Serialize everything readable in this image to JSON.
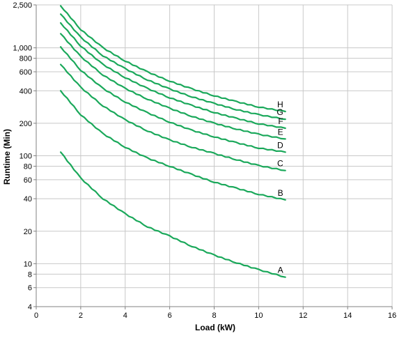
{
  "chart_data": {
    "type": "line",
    "xlabel": "Load (kW)",
    "ylabel": "Runtime (Min)",
    "xlim": [
      0,
      16
    ],
    "ylim": [
      4,
      2500
    ],
    "y_scale": "log",
    "grid": true,
    "legend": "none (labels at line ends)",
    "line_color": "#1aa85a",
    "x_ticks": [
      0,
      2,
      4,
      6,
      8,
      10,
      12,
      14,
      16
    ],
    "x_tick_labels": [
      "0",
      "2",
      "4",
      "6",
      "8",
      "10",
      "12",
      "14",
      "16"
    ],
    "y_ticks": [
      4,
      6,
      8,
      10,
      20,
      40,
      60,
      80,
      100,
      200,
      400,
      600,
      800,
      1000,
      2500
    ],
    "y_tick_labels": [
      "4",
      "6",
      "8",
      "10",
      "20",
      "40",
      "60",
      "80",
      "100",
      "200",
      "400",
      "600",
      "800",
      "1,000",
      "2,500"
    ],
    "series": [
      {
        "name": "A",
        "x": [
          1.1,
          2,
          3,
          4,
          5,
          6,
          7,
          8,
          9,
          10,
          11.2
        ],
        "y": [
          108,
          62,
          40,
          29,
          22,
          18,
          14.5,
          12,
          10.2,
          8.8,
          7.5
        ]
      },
      {
        "name": "B",
        "x": [
          1.1,
          2,
          3,
          4,
          5,
          6,
          7,
          8,
          9,
          10,
          11.2
        ],
        "y": [
          400,
          240,
          160,
          120,
          95,
          80,
          67,
          57,
          50,
          44,
          39
        ]
      },
      {
        "name": "C",
        "x": [
          1.1,
          2,
          3,
          4,
          5,
          6,
          7,
          8,
          9,
          10,
          11.2
        ],
        "y": [
          700,
          430,
          290,
          215,
          170,
          140,
          120,
          105,
          92,
          81,
          73
        ]
      },
      {
        "name": "D",
        "x": [
          1.1,
          2,
          3,
          4,
          5,
          6,
          7,
          8,
          9,
          10,
          11.2
        ],
        "y": [
          1020,
          620,
          420,
          315,
          250,
          205,
          172,
          150,
          132,
          118,
          108
        ]
      },
      {
        "name": "E",
        "x": [
          1.1,
          2,
          3,
          4,
          5,
          6,
          7,
          8,
          9,
          10,
          11.2
        ],
        "y": [
          1350,
          830,
          560,
          420,
          335,
          275,
          232,
          200,
          177,
          158,
          143
        ]
      },
      {
        "name": "F",
        "x": [
          1.1,
          2,
          3,
          4,
          5,
          6,
          7,
          8,
          9,
          10,
          11.2
        ],
        "y": [
          1700,
          1040,
          700,
          530,
          420,
          345,
          292,
          252,
          222,
          198,
          180
        ]
      },
      {
        "name": "G",
        "x": [
          1.1,
          2,
          3,
          4,
          5,
          6,
          7,
          8,
          9,
          10,
          11.2
        ],
        "y": [
          2050,
          1250,
          845,
          640,
          505,
          415,
          352,
          305,
          268,
          240,
          218
        ]
      },
      {
        "name": "H",
        "x": [
          1.1,
          2,
          3,
          4,
          5,
          6,
          7,
          8,
          9,
          10,
          11.2
        ],
        "y": [
          2450,
          1480,
          1000,
          755,
          598,
          492,
          416,
          360,
          317,
          283,
          257
        ]
      }
    ]
  }
}
